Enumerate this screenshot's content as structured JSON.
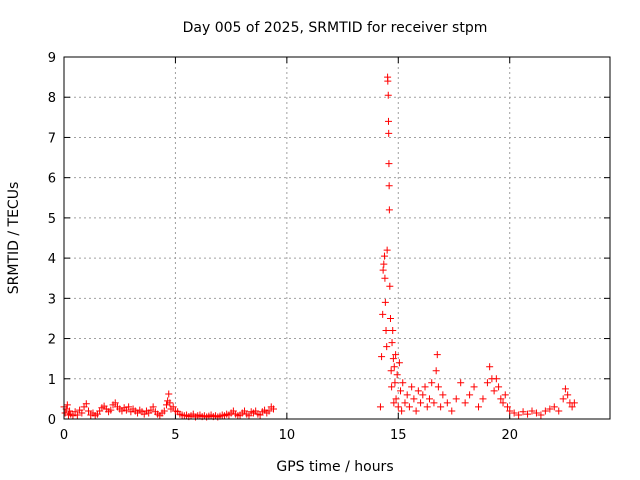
{
  "chart_data": {
    "type": "scatter",
    "title": "Day 005 of 2025, SRMTID for receiver stpm",
    "xlabel": "GPS time / hours",
    "ylabel": "SRMTID / TECUs",
    "xlim": [
      0,
      24.5
    ],
    "ylim": [
      0,
      9
    ],
    "xticks": [
      0,
      5,
      10,
      15,
      20
    ],
    "yticks": [
      0,
      1,
      2,
      3,
      4,
      5,
      6,
      7,
      8,
      9
    ],
    "grid": true,
    "marker": "plus",
    "color": "#ff0000",
    "series": [
      {
        "name": "stpm",
        "points": [
          [
            0.0,
            0.3
          ],
          [
            0.05,
            0.15
          ],
          [
            0.1,
            0.25
          ],
          [
            0.15,
            0.35
          ],
          [
            0.2,
            0.1
          ],
          [
            0.25,
            0.2
          ],
          [
            0.3,
            0.12
          ],
          [
            0.4,
            0.08
          ],
          [
            0.5,
            0.18
          ],
          [
            0.6,
            0.1
          ],
          [
            0.7,
            0.22
          ],
          [
            0.8,
            0.15
          ],
          [
            0.9,
            0.3
          ],
          [
            1.0,
            0.38
          ],
          [
            1.1,
            0.2
          ],
          [
            1.2,
            0.1
          ],
          [
            1.3,
            0.15
          ],
          [
            1.4,
            0.08
          ],
          [
            1.5,
            0.12
          ],
          [
            1.6,
            0.2
          ],
          [
            1.7,
            0.28
          ],
          [
            1.8,
            0.32
          ],
          [
            1.9,
            0.25
          ],
          [
            2.0,
            0.18
          ],
          [
            2.1,
            0.22
          ],
          [
            2.2,
            0.35
          ],
          [
            2.3,
            0.4
          ],
          [
            2.4,
            0.3
          ],
          [
            2.5,
            0.25
          ],
          [
            2.6,
            0.2
          ],
          [
            2.7,
            0.28
          ],
          [
            2.8,
            0.22
          ],
          [
            2.9,
            0.3
          ],
          [
            3.0,
            0.18
          ],
          [
            3.1,
            0.25
          ],
          [
            3.2,
            0.2
          ],
          [
            3.3,
            0.15
          ],
          [
            3.4,
            0.22
          ],
          [
            3.5,
            0.18
          ],
          [
            3.6,
            0.12
          ],
          [
            3.7,
            0.2
          ],
          [
            3.8,
            0.15
          ],
          [
            3.9,
            0.22
          ],
          [
            4.0,
            0.3
          ],
          [
            4.1,
            0.18
          ],
          [
            4.2,
            0.12
          ],
          [
            4.3,
            0.08
          ],
          [
            4.4,
            0.15
          ],
          [
            4.5,
            0.2
          ],
          [
            4.6,
            0.35
          ],
          [
            4.65,
            0.45
          ],
          [
            4.7,
            0.62
          ],
          [
            4.75,
            0.4
          ],
          [
            4.8,
            0.25
          ],
          [
            4.9,
            0.3
          ],
          [
            5.0,
            0.2
          ],
          [
            5.1,
            0.18
          ],
          [
            5.2,
            0.12
          ],
          [
            5.3,
            0.1
          ],
          [
            5.4,
            0.08
          ],
          [
            5.5,
            0.1
          ],
          [
            5.6,
            0.06
          ],
          [
            5.7,
            0.08
          ],
          [
            5.8,
            0.12
          ],
          [
            5.9,
            0.05
          ],
          [
            6.0,
            0.08
          ],
          [
            6.1,
            0.1
          ],
          [
            6.2,
            0.06
          ],
          [
            6.3,
            0.08
          ],
          [
            6.4,
            0.05
          ],
          [
            6.5,
            0.07
          ],
          [
            6.6,
            0.1
          ],
          [
            6.7,
            0.06
          ],
          [
            6.8,
            0.08
          ],
          [
            6.9,
            0.05
          ],
          [
            7.0,
            0.07
          ],
          [
            7.1,
            0.1
          ],
          [
            7.2,
            0.08
          ],
          [
            7.3,
            0.12
          ],
          [
            7.4,
            0.1
          ],
          [
            7.5,
            0.15
          ],
          [
            7.6,
            0.2
          ],
          [
            7.7,
            0.12
          ],
          [
            7.8,
            0.08
          ],
          [
            7.9,
            0.1
          ],
          [
            8.0,
            0.15
          ],
          [
            8.1,
            0.2
          ],
          [
            8.2,
            0.12
          ],
          [
            8.3,
            0.08
          ],
          [
            8.4,
            0.18
          ],
          [
            8.5,
            0.15
          ],
          [
            8.6,
            0.2
          ],
          [
            8.7,
            0.12
          ],
          [
            8.8,
            0.1
          ],
          [
            8.9,
            0.18
          ],
          [
            9.0,
            0.22
          ],
          [
            9.1,
            0.15
          ],
          [
            9.2,
            0.2
          ],
          [
            9.3,
            0.3
          ],
          [
            9.4,
            0.25
          ],
          [
            14.2,
            0.3
          ],
          [
            14.25,
            1.55
          ],
          [
            14.3,
            2.6
          ],
          [
            14.32,
            3.7
          ],
          [
            14.35,
            3.85
          ],
          [
            14.38,
            4.05
          ],
          [
            14.4,
            3.5
          ],
          [
            14.42,
            2.9
          ],
          [
            14.45,
            2.2
          ],
          [
            14.48,
            1.8
          ],
          [
            14.5,
            4.2
          ],
          [
            14.52,
            8.5
          ],
          [
            14.53,
            8.4
          ],
          [
            14.55,
            8.05
          ],
          [
            14.56,
            7.4
          ],
          [
            14.57,
            7.1
          ],
          [
            14.58,
            6.35
          ],
          [
            14.59,
            5.8
          ],
          [
            14.6,
            5.2
          ],
          [
            14.62,
            3.3
          ],
          [
            14.65,
            2.5
          ],
          [
            14.68,
            1.2
          ],
          [
            14.7,
            0.8
          ],
          [
            14.72,
            1.9
          ],
          [
            14.75,
            2.2
          ],
          [
            14.78,
            1.5
          ],
          [
            14.8,
            0.4
          ],
          [
            14.82,
            1.3
          ],
          [
            14.85,
            0.9
          ],
          [
            14.88,
            1.6
          ],
          [
            14.9,
            0.5
          ],
          [
            14.95,
            1.1
          ],
          [
            15.0,
            0.3
          ],
          [
            15.05,
            1.4
          ],
          [
            15.1,
            0.7
          ],
          [
            15.15,
            0.2
          ],
          [
            15.2,
            0.9
          ],
          [
            15.3,
            0.4
          ],
          [
            15.4,
            0.6
          ],
          [
            15.5,
            0.3
          ],
          [
            15.6,
            0.8
          ],
          [
            15.7,
            0.5
          ],
          [
            15.8,
            0.2
          ],
          [
            15.9,
            0.7
          ],
          [
            16.0,
            0.4
          ],
          [
            16.1,
            0.6
          ],
          [
            16.2,
            0.8
          ],
          [
            16.3,
            0.3
          ],
          [
            16.4,
            0.5
          ],
          [
            16.5,
            0.9
          ],
          [
            16.6,
            0.4
          ],
          [
            16.7,
            1.2
          ],
          [
            16.75,
            1.6
          ],
          [
            16.8,
            0.8
          ],
          [
            16.9,
            0.3
          ],
          [
            17.0,
            0.6
          ],
          [
            17.2,
            0.4
          ],
          [
            17.4,
            0.2
          ],
          [
            17.6,
            0.5
          ],
          [
            17.8,
            0.9
          ],
          [
            18.0,
            0.4
          ],
          [
            18.2,
            0.6
          ],
          [
            18.4,
            0.8
          ],
          [
            18.6,
            0.3
          ],
          [
            18.8,
            0.5
          ],
          [
            19.0,
            0.9
          ],
          [
            19.1,
            1.3
          ],
          [
            19.2,
            1.0
          ],
          [
            19.3,
            0.7
          ],
          [
            19.4,
            1.0
          ],
          [
            19.5,
            0.8
          ],
          [
            19.6,
            0.5
          ],
          [
            19.7,
            0.4
          ],
          [
            19.8,
            0.6
          ],
          [
            19.9,
            0.3
          ],
          [
            20.0,
            0.2
          ],
          [
            20.2,
            0.15
          ],
          [
            20.4,
            0.1
          ],
          [
            20.6,
            0.18
          ],
          [
            20.8,
            0.12
          ],
          [
            21.0,
            0.2
          ],
          [
            21.2,
            0.15
          ],
          [
            21.4,
            0.1
          ],
          [
            21.6,
            0.2
          ],
          [
            21.8,
            0.25
          ],
          [
            22.0,
            0.3
          ],
          [
            22.2,
            0.2
          ],
          [
            22.4,
            0.5
          ],
          [
            22.5,
            0.75
          ],
          [
            22.6,
            0.6
          ],
          [
            22.7,
            0.4
          ],
          [
            22.8,
            0.3
          ],
          [
            22.9,
            0.4
          ]
        ]
      }
    ]
  }
}
